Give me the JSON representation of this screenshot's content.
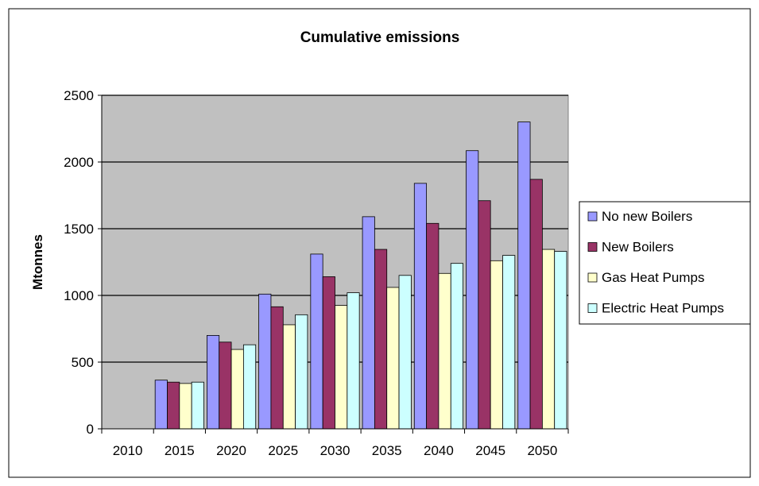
{
  "chart_data": {
    "type": "bar",
    "title": "Cumulative emissions",
    "xlabel": "",
    "ylabel": "Mtonnes",
    "categories": [
      "2010",
      "2015",
      "2020",
      "2025",
      "2030",
      "2035",
      "2040",
      "2045",
      "2050"
    ],
    "ylim": [
      0,
      2500
    ],
    "yticks": [
      "0",
      "500",
      "1000",
      "1500",
      "2000",
      "2500"
    ],
    "grid": true,
    "legend_position": "right",
    "plot_background": "#c0c0c0",
    "series": [
      {
        "name": "No new Boilers",
        "color": "#9999ff",
        "values": [
          0,
          365,
          700,
          1010,
          1310,
          1590,
          1840,
          2085,
          2300
        ]
      },
      {
        "name": "New Boilers",
        "color": "#993366",
        "values": [
          0,
          350,
          650,
          915,
          1140,
          1345,
          1540,
          1710,
          1870
        ]
      },
      {
        "name": "Gas Heat Pumps",
        "color": "#ffffcc",
        "values": [
          0,
          340,
          595,
          780,
          925,
          1060,
          1165,
          1260,
          1345
        ]
      },
      {
        "name": "Electric Heat Pumps",
        "color": "#ccffff",
        "values": [
          0,
          350,
          630,
          855,
          1020,
          1150,
          1240,
          1300,
          1330
        ]
      }
    ]
  }
}
